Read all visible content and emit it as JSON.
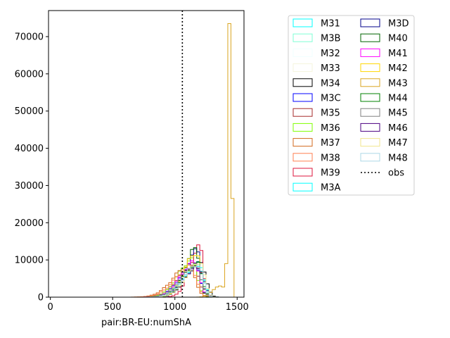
{
  "chart_data": {
    "type": "step-histogram",
    "xlabel": "pair:BR-EU:numShA",
    "ylabel": "",
    "xlim": [
      -15,
      1555
    ],
    "ylim": [
      0,
      77000
    ],
    "xticks": [
      0,
      500,
      1000,
      1500
    ],
    "yticks": [
      0,
      10000,
      20000,
      30000,
      40000,
      50000,
      60000,
      70000
    ],
    "xtick_labels": [
      "0",
      "500",
      "1000",
      "1500"
    ],
    "ytick_labels": [
      "0",
      "10000",
      "20000",
      "30000",
      "40000",
      "50000",
      "60000",
      "70000"
    ],
    "legend_position": "upper right, outside plot",
    "legend_columns": 2,
    "observed": {
      "name": "obs",
      "x": 1060,
      "style": "dotted",
      "color": "#000000"
    },
    "bin_width": 25,
    "series": [
      {
        "name": "M31",
        "color": "#00ffff",
        "peak_x": 1190,
        "peak": 8500,
        "spread": 105,
        "start": 350,
        "end": 1420
      },
      {
        "name": "M3B",
        "color": "#7fffd4",
        "peak_x": 1185,
        "peak": 8000,
        "spread": 108,
        "start": 350,
        "end": 1420
      },
      {
        "name": "M32",
        "color": "#f0ffff",
        "peak_x": 1180,
        "peak": 7800,
        "spread": 110,
        "start": 350,
        "end": 1420
      },
      {
        "name": "M33",
        "color": "#f5f5dc",
        "peak_x": 1170,
        "peak": 8200,
        "spread": 112,
        "start": 350,
        "end": 1410
      },
      {
        "name": "M34",
        "color": "#000000",
        "peak_x": 1210,
        "peak": 9200,
        "spread": 100,
        "start": 350,
        "end": 1420
      },
      {
        "name": "M3C",
        "color": "#0000ff",
        "peak_x": 1160,
        "peak": 8800,
        "spread": 105,
        "start": 350,
        "end": 1410
      },
      {
        "name": "M35",
        "color": "#a52a2a",
        "peak_x": 1150,
        "peak": 8400,
        "spread": 110,
        "start": 350,
        "end": 1400
      },
      {
        "name": "M36",
        "color": "#7fff00",
        "peak_x": 1140,
        "peak": 10000,
        "spread": 100,
        "start": 350,
        "end": 1400
      },
      {
        "name": "M37",
        "color": "#d2691e",
        "peak_x": 1120,
        "peak": 8600,
        "spread": 115,
        "start": 350,
        "end": 1390
      },
      {
        "name": "M38",
        "color": "#ff7f50",
        "peak_x": 1130,
        "peak": 8200,
        "spread": 112,
        "start": 350,
        "end": 1400
      },
      {
        "name": "M39",
        "color": "#dc143c",
        "peak_x": 1200,
        "peak": 13500,
        "spread": 70,
        "start": 450,
        "end": 1390
      },
      {
        "name": "M3A",
        "color": "#00ffff",
        "peak_x": 1195,
        "peak": 9000,
        "spread": 100,
        "start": 350,
        "end": 1420
      },
      {
        "name": "M3D",
        "color": "#00008b",
        "peak_x": 1180,
        "peak": 12500,
        "spread": 80,
        "start": 400,
        "end": 1400
      },
      {
        "name": "M40",
        "color": "#006400",
        "peak_x": 1170,
        "peak": 13000,
        "spread": 78,
        "start": 400,
        "end": 1400
      },
      {
        "name": "M41",
        "color": "#ff00ff",
        "peak_x": 1160,
        "peak": 9500,
        "spread": 100,
        "start": 350,
        "end": 1400
      },
      {
        "name": "M42",
        "color": "#ffd700",
        "peak_x": 1175,
        "peak": 12000,
        "spread": 85,
        "start": 400,
        "end": 1400
      },
      {
        "name": "M43",
        "color": "#daa520",
        "peak_x": 1440,
        "peak": 73500,
        "spread": 0,
        "start": 350,
        "end": 1470
      },
      {
        "name": "M44",
        "color": "#008000",
        "peak_x": 1180,
        "peak": 9000,
        "spread": 100,
        "start": 350,
        "end": 1410
      },
      {
        "name": "M45",
        "color": "#808080",
        "peak_x": 1170,
        "peak": 8500,
        "spread": 105,
        "start": 350,
        "end": 1410
      },
      {
        "name": "M46",
        "color": "#4b0082",
        "peak_x": 1190,
        "peak": 8000,
        "spread": 105,
        "start": 350,
        "end": 1410
      },
      {
        "name": "M47",
        "color": "#f0e68c",
        "peak_x": 1200,
        "peak": 9500,
        "spread": 95,
        "start": 350,
        "end": 1420
      },
      {
        "name": "M48",
        "color": "#add8e6",
        "peak_x": 1185,
        "peak": 8800,
        "spread": 100,
        "start": 350,
        "end": 1420
      }
    ]
  }
}
